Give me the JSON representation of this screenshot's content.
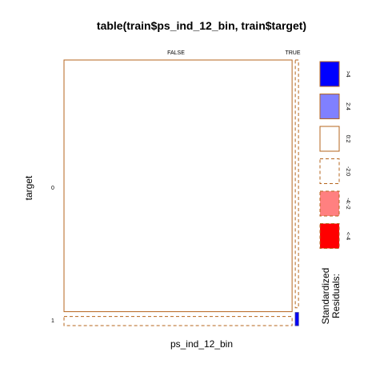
{
  "chart_data": {
    "type": "mosaic",
    "title": "table(train$ps_ind_12_bin, train$target)",
    "xlabel": "ps_ind_12_bin",
    "ylabel": "target",
    "x_categories": [
      "FALSE",
      "TRUE"
    ],
    "y_categories": [
      "0",
      "1"
    ],
    "x_proportions": [
      0.99,
      0.01
    ],
    "y_proportions_within_x": [
      [
        0.965,
        0.035
      ],
      [
        0.95,
        0.05
      ]
    ],
    "cells": [
      {
        "x": "FALSE",
        "y": "0",
        "residual_band": "0:2"
      },
      {
        "x": "FALSE",
        "y": "1",
        "residual_band": "-2:0"
      },
      {
        "x": "TRUE",
        "y": "0",
        "residual_band": "-2:0"
      },
      {
        "x": "TRUE",
        "y": "1",
        "residual_band": ">4"
      }
    ],
    "legend": {
      "title_lines": [
        "Standardized",
        "Residuals:"
      ],
      "entries": [
        {
          "label": ">4",
          "fill": "#0000ff",
          "dashed": false
        },
        {
          "label": "2:4",
          "fill": "#8080ff",
          "dashed": false
        },
        {
          "label": "0:2",
          "fill": "#ffffff",
          "dashed": false
        },
        {
          "label": "-2:0",
          "fill": "#ffffff",
          "dashed": true
        },
        {
          "label": "-4:-2",
          "fill": "#ff8080",
          "dashed": true
        },
        {
          "label": "<-4",
          "fill": "#ff0000",
          "dashed": true
        }
      ]
    },
    "border_color": "#b5651d"
  }
}
